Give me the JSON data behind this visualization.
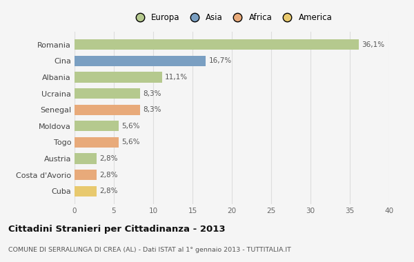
{
  "categories": [
    "Romania",
    "Cina",
    "Albania",
    "Ucraina",
    "Senegal",
    "Moldova",
    "Togo",
    "Austria",
    "Costa d'Avorio",
    "Cuba"
  ],
  "values": [
    36.1,
    16.7,
    11.1,
    8.3,
    8.3,
    5.6,
    5.6,
    2.8,
    2.8,
    2.8
  ],
  "labels": [
    "36,1%",
    "16,7%",
    "11,1%",
    "8,3%",
    "8,3%",
    "5,6%",
    "5,6%",
    "2,8%",
    "2,8%",
    "2,8%"
  ],
  "colors": [
    "#b5c98e",
    "#7a9fc2",
    "#b5c98e",
    "#b5c98e",
    "#e8aa7a",
    "#b5c98e",
    "#e8aa7a",
    "#b5c98e",
    "#e8aa7a",
    "#e8c96e"
  ],
  "legend_labels": [
    "Europa",
    "Asia",
    "Africa",
    "America"
  ],
  "legend_colors": [
    "#b5c98e",
    "#7a9fc2",
    "#e8aa7a",
    "#e8c96e"
  ],
  "title": "Cittadini Stranieri per Cittadinanza - 2013",
  "subtitle": "COMUNE DI SERRALUNGA DI CREA (AL) - Dati ISTAT al 1° gennaio 2013 - TUTTITALIA.IT",
  "xlim": [
    0,
    40
  ],
  "xticks": [
    0,
    5,
    10,
    15,
    20,
    25,
    30,
    35,
    40
  ],
  "background_color": "#f5f5f5",
  "grid_color": "#dddddd",
  "bar_height": 0.65
}
